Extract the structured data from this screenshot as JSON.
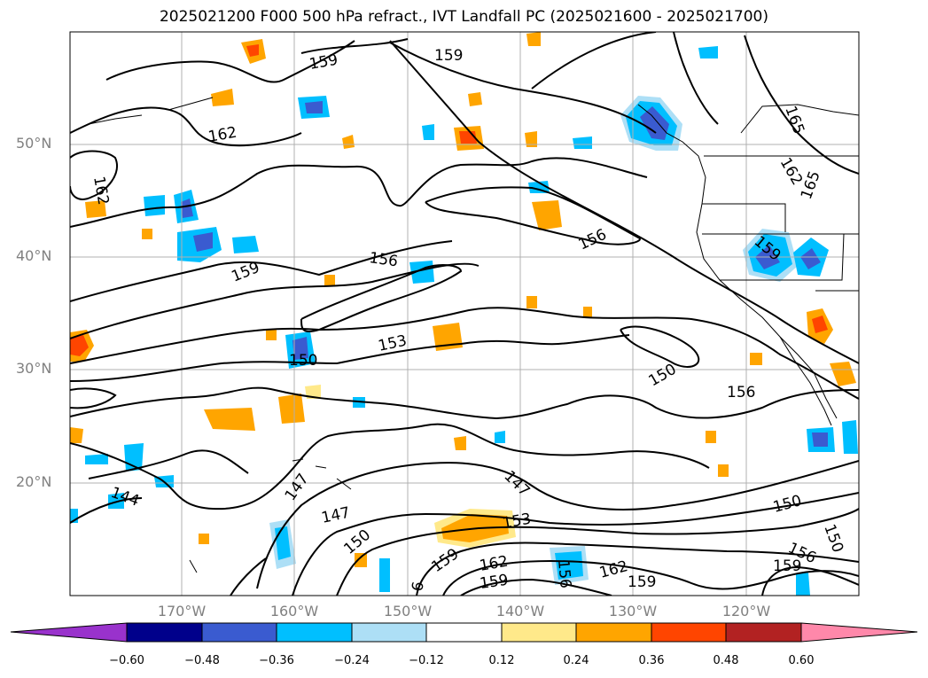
{
  "title": "2025021200 F000 500 hPa refract., IVT Landfall PC (2025021600 - 2025021700)",
  "lat_labels": [
    "50°N",
    "40°N",
    "30°N",
    "20°N"
  ],
  "lon_labels": [
    "170°W",
    "160°W",
    "150°W",
    "140°W",
    "130°W",
    "120°W"
  ],
  "colorbar": {
    "ticks": [
      "−0.60",
      "−0.48",
      "−0.36",
      "−0.24",
      "−0.12",
      "0.12",
      "0.24",
      "0.36",
      "0.48",
      "0.60"
    ],
    "colors": [
      "#9932CC",
      "#00008B",
      "#3A5BD0",
      "#00BFFF",
      "#ADDFF6",
      "#FFFFFF",
      "#FFE98A",
      "#FFA500",
      "#FF4500",
      "#B22222",
      "#FF88AA"
    ]
  },
  "contour_labels": [
    "159",
    "159",
    "162",
    "162",
    "165",
    "162",
    "165",
    "159",
    "156",
    "156",
    "159",
    "153",
    "150",
    "150",
    "156",
    "147",
    "147",
    "144",
    "147",
    "150",
    "153",
    "150",
    "156",
    "159",
    "159",
    "162",
    "162",
    "159",
    "159",
    "156",
    "150",
    "6"
  ]
}
